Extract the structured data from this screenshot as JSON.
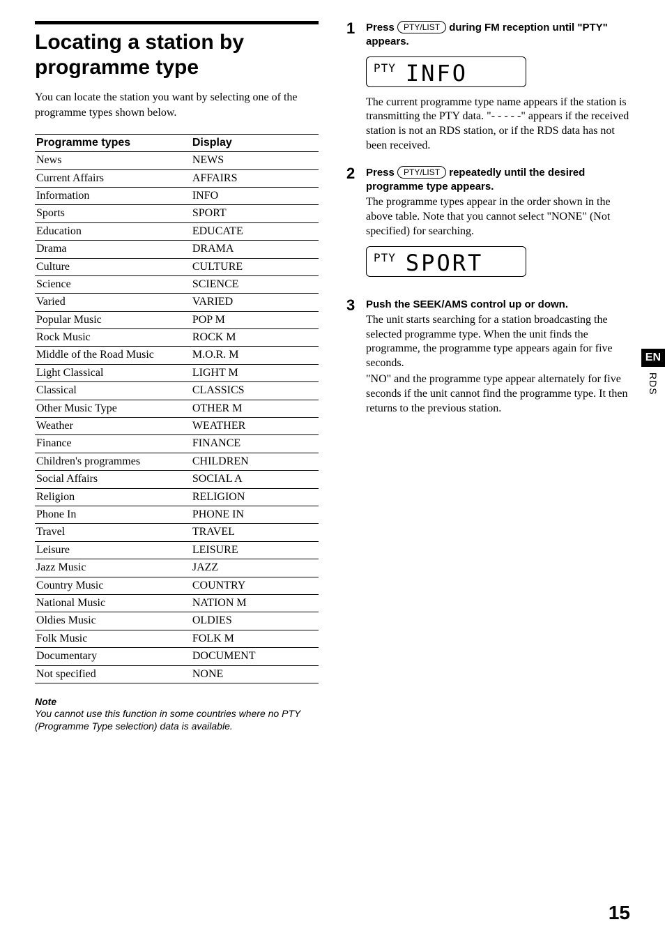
{
  "left": {
    "heading": "Locating a station by programme type",
    "intro": "You can locate the station you want by selecting one of the programme types shown below.",
    "table": {
      "headers": [
        "Programme types",
        "Display"
      ],
      "rows": [
        [
          "News",
          "NEWS"
        ],
        [
          "Current Affairs",
          "AFFAIRS"
        ],
        [
          "Information",
          "INFO"
        ],
        [
          "Sports",
          "SPORT"
        ],
        [
          "Education",
          "EDUCATE"
        ],
        [
          "Drama",
          "DRAMA"
        ],
        [
          "Culture",
          "CULTURE"
        ],
        [
          "Science",
          "SCIENCE"
        ],
        [
          "Varied",
          "VARIED"
        ],
        [
          "Popular Music",
          "POP M"
        ],
        [
          "Rock Music",
          "ROCK M"
        ],
        [
          "Middle of the Road Music",
          "M.O.R. M"
        ],
        [
          "Light Classical",
          "LIGHT M"
        ],
        [
          "Classical",
          "CLASSICS"
        ],
        [
          "Other Music Type",
          "OTHER M"
        ],
        [
          "Weather",
          "WEATHER"
        ],
        [
          "Finance",
          "FINANCE"
        ],
        [
          "Children's programmes",
          "CHILDREN"
        ],
        [
          "Social Affairs",
          "SOCIAL A"
        ],
        [
          "Religion",
          "RELIGION"
        ],
        [
          "Phone In",
          "PHONE IN"
        ],
        [
          "Travel",
          "TRAVEL"
        ],
        [
          "Leisure",
          "LEISURE"
        ],
        [
          "Jazz Music",
          "JAZZ"
        ],
        [
          "Country Music",
          "COUNTRY"
        ],
        [
          "National Music",
          "NATION M"
        ],
        [
          "Oldies Music",
          "OLDIES"
        ],
        [
          "Folk Music",
          "FOLK M"
        ],
        [
          "Documentary",
          "DOCUMENT"
        ],
        [
          "Not specified",
          "NONE"
        ]
      ]
    },
    "note_heading": "Note",
    "note_body": "You cannot use this function in some countries where no PTY (Programme Type selection) data is available."
  },
  "right": {
    "button_label": "PTY/LIST",
    "step1": {
      "num": "1",
      "lead_pre": "Press ",
      "lead_post": " during FM reception until \"PTY\" appears.",
      "lcd_small": "PTY",
      "lcd_big": "INFO",
      "body": "The current programme type name appears if the station is transmitting the PTY data. \"- - - - -\" appears if the received station is not an RDS station, or if the RDS data has not been received."
    },
    "step2": {
      "num": "2",
      "lead_pre": "Press ",
      "lead_post": " repeatedly until the desired programme type appears.",
      "body": "The programme types appear in the order shown in the above table. Note that you cannot select \"NONE\" (Not specified) for searching.",
      "lcd_small": "PTY",
      "lcd_big": "SPORT"
    },
    "step3": {
      "num": "3",
      "lead": "Push the SEEK/AMS control up or down.",
      "body1": "The unit starts searching for a station broadcasting the selected programme type. When the unit finds the programme, the programme type appears again for five seconds.",
      "body2": "\"NO\" and the programme type appear alternately for five seconds if the unit cannot find the programme type. It then returns to the previous station."
    }
  },
  "side": {
    "en": "EN",
    "rds": "RDS"
  },
  "page_number": "15"
}
